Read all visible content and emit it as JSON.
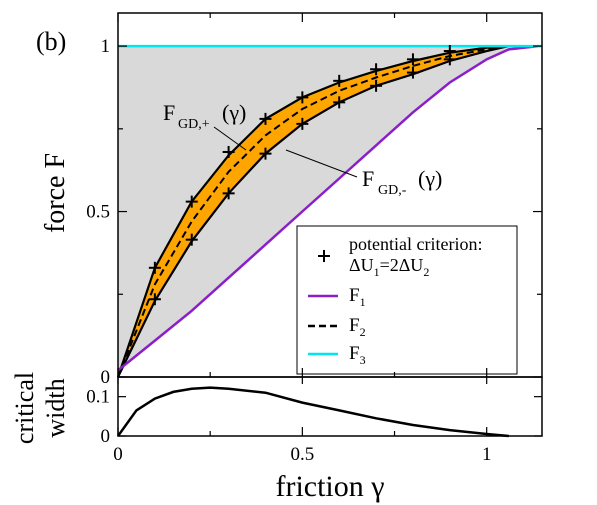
{
  "panel_label": "(b)",
  "colors": {
    "shade": "#d9d9d9",
    "band": "#ffa500",
    "F1": "#8a1ecb",
    "F2": "#000000",
    "F3": "#00e5ee",
    "marker": "#000000"
  },
  "chart_data": [
    {
      "type": "line",
      "xlim": [
        0,
        1.15
      ],
      "ylim": [
        0,
        1.1
      ],
      "xlabel": "",
      "ylabel": "force F",
      "yticks": [
        0,
        0.5,
        1
      ],
      "ytick_labels": [
        "0",
        "0.5",
        "1"
      ],
      "xticks": [
        0,
        0.5,
        1
      ],
      "grid": false,
      "legend_position": "lower-right",
      "legend": {
        "potential_title": "potential criterion:",
        "potential_sub": "ΔU",
        "potential_sub1": "1",
        "potential_mid": "=2ΔU",
        "potential_sub2": "2",
        "F1": "F",
        "F1_sub": "1",
        "F2": "F",
        "F2_sub": "2",
        "F3": "F",
        "F3_sub": "3"
      },
      "annotations": {
        "upper_main": "F",
        "upper_sub": "GD,+",
        "upper_arg": "(γ)",
        "lower_main": "F",
        "lower_sub": "GD,-",
        "lower_arg": "(γ)"
      },
      "series": [
        {
          "name": "F1",
          "x": [
            0,
            0.1,
            0.2,
            0.3,
            0.4,
            0.5,
            0.6,
            0.7,
            0.8,
            0.9,
            1.0,
            1.06,
            1.14
          ],
          "y": [
            0.02,
            0.11,
            0.2,
            0.3,
            0.4,
            0.5,
            0.6,
            0.7,
            0.8,
            0.89,
            0.96,
            0.99,
            1.0
          ]
        },
        {
          "name": "F2",
          "x": [
            0,
            0.1,
            0.2,
            0.3,
            0.4,
            0.5,
            0.6,
            0.7,
            0.8,
            0.9,
            1.0,
            1.06
          ],
          "y": [
            0.0,
            0.28,
            0.47,
            0.62,
            0.73,
            0.81,
            0.865,
            0.905,
            0.94,
            0.97,
            0.99,
            1.0
          ]
        },
        {
          "name": "F3",
          "x": [
            0,
            1.15
          ],
          "y": [
            1.0,
            1.0
          ]
        },
        {
          "name": "F_GD_plus",
          "x": [
            0,
            0.1,
            0.2,
            0.3,
            0.4,
            0.5,
            0.6,
            0.7,
            0.8,
            0.9,
            1.0,
            1.06
          ],
          "y": [
            0.0,
            0.33,
            0.53,
            0.67,
            0.78,
            0.845,
            0.89,
            0.925,
            0.955,
            0.98,
            0.995,
            1.0
          ]
        },
        {
          "name": "F_GD_minus",
          "x": [
            0,
            0.1,
            0.2,
            0.3,
            0.4,
            0.5,
            0.6,
            0.7,
            0.8,
            0.9,
            1.0,
            1.06
          ],
          "y": [
            0.0,
            0.23,
            0.41,
            0.555,
            0.675,
            0.765,
            0.83,
            0.88,
            0.915,
            0.955,
            0.985,
            1.0
          ]
        },
        {
          "name": "potential criterion upper",
          "x": [
            0.1,
            0.2,
            0.3,
            0.4,
            0.5,
            0.6,
            0.7,
            0.8,
            0.9
          ],
          "y": [
            0.33,
            0.53,
            0.68,
            0.78,
            0.845,
            0.895,
            0.93,
            0.96,
            0.985
          ]
        },
        {
          "name": "potential criterion lower",
          "x": [
            0.1,
            0.2,
            0.3,
            0.4,
            0.5,
            0.6,
            0.7,
            0.8,
            0.9
          ],
          "y": [
            0.235,
            0.415,
            0.555,
            0.675,
            0.765,
            0.83,
            0.88,
            0.92,
            0.96
          ]
        }
      ]
    },
    {
      "type": "line",
      "xlim": [
        0,
        1.15
      ],
      "ylim": [
        0,
        0.15
      ],
      "xlabel": "friction γ",
      "ylabel": "critical width",
      "ylabel_line1": "critical",
      "ylabel_line2": "width",
      "yticks": [
        0,
        0.1
      ],
      "ytick_labels": [
        "0",
        "0.1"
      ],
      "xticks": [
        0,
        0.5,
        1
      ],
      "xtick_labels": [
        "0",
        "0.5",
        "1"
      ],
      "series": [
        {
          "name": "width",
          "x": [
            0,
            0.05,
            0.1,
            0.15,
            0.2,
            0.25,
            0.3,
            0.4,
            0.5,
            0.6,
            0.7,
            0.8,
            0.9,
            1.0,
            1.06
          ],
          "y": [
            0.0,
            0.065,
            0.095,
            0.112,
            0.12,
            0.123,
            0.12,
            0.11,
            0.085,
            0.065,
            0.045,
            0.028,
            0.015,
            0.005,
            0.0
          ]
        }
      ]
    }
  ]
}
